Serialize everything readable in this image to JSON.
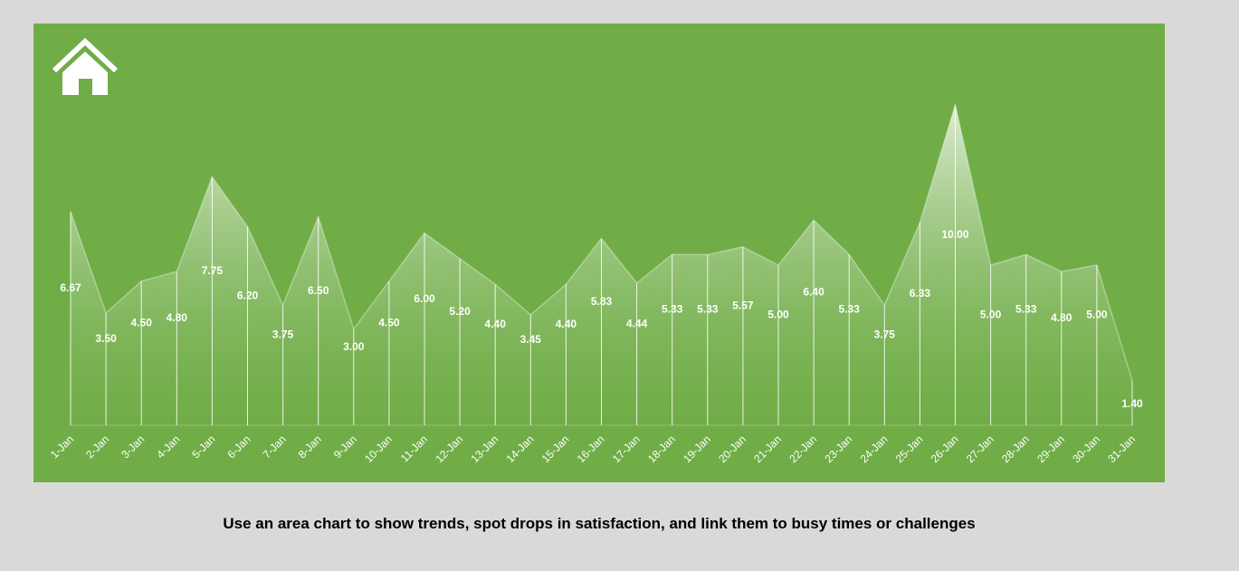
{
  "colors": {
    "panel_background": "#70ad47",
    "area_fill_top": "#e2efda",
    "area_fill_bottom": "#70ad47",
    "label_color": "#ffffff",
    "page_background": "#d9d9d9"
  },
  "home_button": {
    "icon": "home-icon"
  },
  "caption": "Use an area chart to show trends, spot drops in satisfaction, and link them to busy times or challenges",
  "chart_data": {
    "type": "area",
    "title": "",
    "xlabel": "",
    "ylabel": "",
    "ylim": [
      0,
      12
    ],
    "grid": false,
    "legend": "none",
    "categories": [
      "1-Jan",
      "2-Jan",
      "3-Jan",
      "4-Jan",
      "5-Jan",
      "6-Jan",
      "7-Jan",
      "8-Jan",
      "9-Jan",
      "10-Jan",
      "11-Jan",
      "12-Jan",
      "13-Jan",
      "14-Jan",
      "15-Jan",
      "16-Jan",
      "17-Jan",
      "18-Jan",
      "19-Jan",
      "20-Jan",
      "21-Jan",
      "22-Jan",
      "23-Jan",
      "24-Jan",
      "25-Jan",
      "26-Jan",
      "27-Jan",
      "28-Jan",
      "29-Jan",
      "30-Jan",
      "31-Jan"
    ],
    "values": [
      6.67,
      3.5,
      4.5,
      4.8,
      7.75,
      6.2,
      3.75,
      6.5,
      3.0,
      4.5,
      6.0,
      5.2,
      4.4,
      3.45,
      4.4,
      5.83,
      4.44,
      5.33,
      5.33,
      5.57,
      5.0,
      6.4,
      5.33,
      3.75,
      6.33,
      10.0,
      5.0,
      5.33,
      4.8,
      5.0,
      1.4
    ],
    "data_labels": [
      "6.67",
      "3.50",
      "4.50",
      "4.80",
      "7.75",
      "6.20",
      "3.75",
      "6.50",
      "3.00",
      "4.50",
      "6.00",
      "5.20",
      "4.40",
      "3.45",
      "4.40",
      "5.83",
      "4.44",
      "5.33",
      "5.33",
      "5.57",
      "5.00",
      "6.40",
      "5.33",
      "3.75",
      "6.33",
      "10.00",
      "5.00",
      "5.33",
      "4.80",
      "5.00",
      "1.40"
    ]
  }
}
